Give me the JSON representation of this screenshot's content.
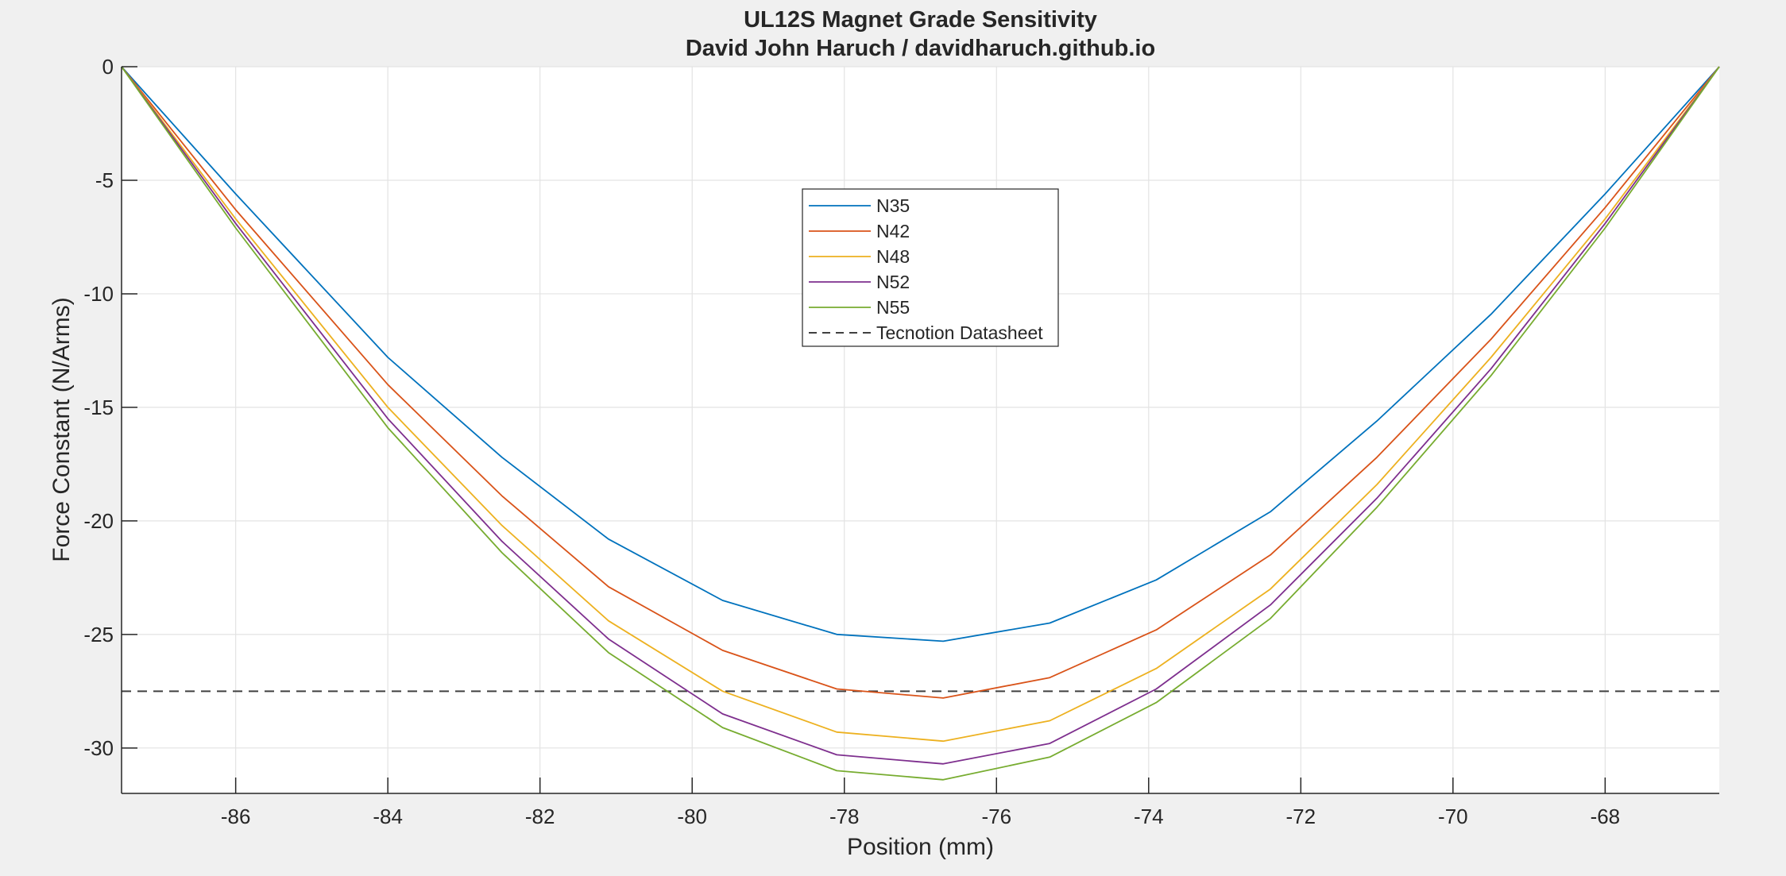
{
  "chart_data": {
    "type": "line",
    "title": "UL12S Magnet Grade Sensitivity",
    "subtitle": "David John Haruch / davidharuch.github.io",
    "xlabel": "Position (mm)",
    "ylabel": "Force Constant (N/Arms)",
    "xlim": [
      -87.5,
      -66.5
    ],
    "ylim": [
      -32,
      0
    ],
    "xticks": [
      -86,
      -84,
      -82,
      -80,
      -78,
      -76,
      -74,
      -72,
      -70,
      -68
    ],
    "yticks": [
      0,
      -5,
      -10,
      -15,
      -20,
      -25,
      -30
    ],
    "grid": true,
    "legend_position": "top-center",
    "x": [
      -87.5,
      -86.0,
      -84.0,
      -82.5,
      -81.1,
      -79.6,
      -78.1,
      -76.7,
      -75.3,
      -73.9,
      -72.4,
      -71.0,
      -69.5,
      -68.0,
      -66.5
    ],
    "series": [
      {
        "name": "N35",
        "color": "#0072bd",
        "values": [
          0,
          -5.6,
          -12.8,
          -17.2,
          -20.8,
          -23.5,
          -25.0,
          -25.3,
          -24.5,
          -22.6,
          -19.6,
          -15.6,
          -10.9,
          -5.6,
          0
        ]
      },
      {
        "name": "N42",
        "color": "#d95319",
        "values": [
          0,
          -6.3,
          -14.0,
          -18.9,
          -22.9,
          -25.7,
          -27.4,
          -27.8,
          -26.9,
          -24.8,
          -21.5,
          -17.2,
          -12.0,
          -6.2,
          0
        ]
      },
      {
        "name": "N48",
        "color": "#edb120",
        "values": [
          0,
          -6.7,
          -15.0,
          -20.2,
          -24.4,
          -27.5,
          -29.3,
          -29.7,
          -28.8,
          -26.5,
          -23.0,
          -18.4,
          -12.8,
          -6.7,
          0
        ]
      },
      {
        "name": "N52",
        "color": "#7e2f8e",
        "values": [
          0,
          -6.9,
          -15.5,
          -20.9,
          -25.2,
          -28.5,
          -30.3,
          -30.7,
          -29.8,
          -27.4,
          -23.7,
          -19.0,
          -13.3,
          -6.9,
          0
        ]
      },
      {
        "name": "N55",
        "color": "#77ac30",
        "values": [
          0,
          -7.1,
          -15.9,
          -21.4,
          -25.8,
          -29.1,
          -31.0,
          -31.4,
          -30.4,
          -28.0,
          -24.3,
          -19.4,
          -13.6,
          -7.1,
          0
        ]
      }
    ],
    "reference_line": {
      "name": "Tecnotion Datasheet",
      "color": "#404040",
      "style": "dashed",
      "value": -27.5
    }
  }
}
